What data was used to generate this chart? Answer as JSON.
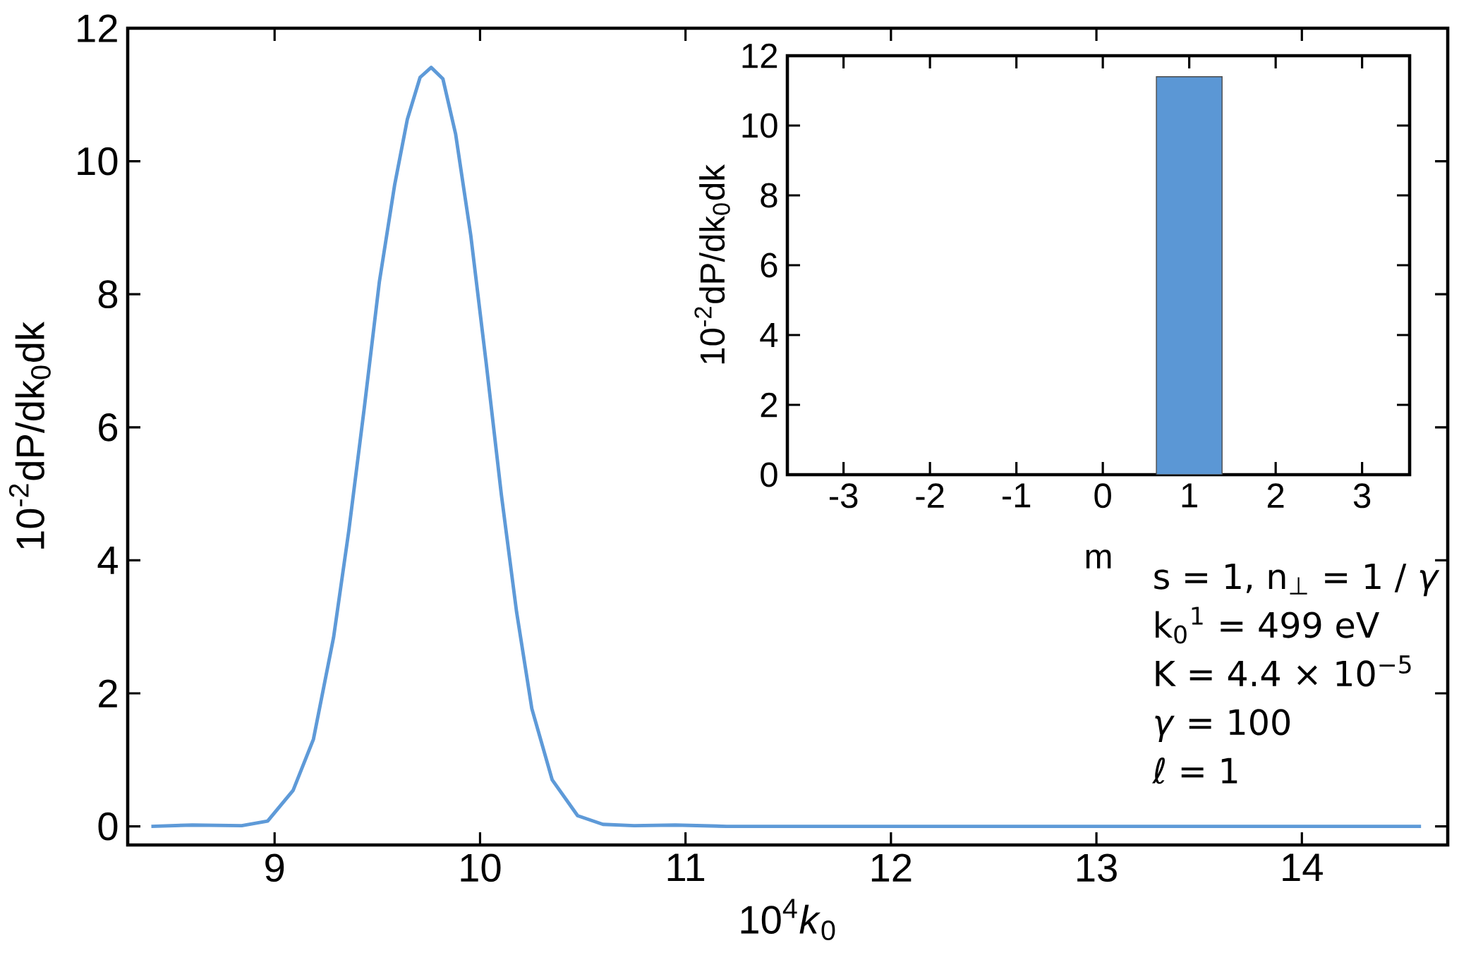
{
  "chart_data": [
    {
      "type": "line",
      "color": "#5e9ad8",
      "x": [
        8.4,
        8.6,
        8.84,
        8.966,
        9.09,
        9.189,
        9.287,
        9.361,
        9.436,
        9.51,
        9.584,
        9.646,
        9.708,
        9.762,
        9.819,
        9.881,
        9.955,
        10.03,
        10.104,
        10.178,
        10.252,
        10.351,
        10.475,
        10.598,
        10.75,
        10.95,
        11.2,
        12.0,
        13.0,
        14.0,
        14.58
      ],
      "values": [
        0.0,
        0.02,
        0.01,
        0.08,
        0.54,
        1.31,
        2.84,
        4.44,
        6.28,
        8.19,
        9.64,
        10.63,
        11.26,
        11.41,
        11.24,
        10.41,
        8.88,
        6.96,
        4.98,
        3.22,
        1.77,
        0.7,
        0.16,
        0.03,
        0.01,
        0.02,
        0.0,
        0.0,
        0.0,
        0.0,
        0.0
      ],
      "xlim": [
        8.285,
        14.71
      ],
      "ylim": [
        -0.28,
        12
      ],
      "xticks": [
        9,
        10,
        11,
        12,
        13,
        14
      ],
      "yticks": [
        0,
        2,
        4,
        6,
        8,
        10,
        12
      ],
      "xlabel": "10$^{4}$*k*$_{0}$",
      "ylabel": "10$^{-2}$dP/dk$_{0}$dk",
      "annotations": [
        "s = 1, n$_{⊥}$ = 1 / *γ*",
        "k$_{0}$$^{1}$ = 499 eV",
        "K = 4.4 × 10$^{−5}$",
        "*γ* = 100",
        "ℓ = 1"
      ]
    },
    {
      "type": "bar",
      "color": "#5b97d5",
      "x": [
        1
      ],
      "values": [
        11.4
      ],
      "xlim": [
        -3.65,
        3.55
      ],
      "ylim": [
        0,
        12
      ],
      "xticks": [
        -3,
        -2,
        -1,
        0,
        1,
        2,
        3
      ],
      "yticks": [
        0,
        2,
        4,
        6,
        8,
        10,
        12
      ],
      "xlabel": "m",
      "ylabel": "10$^{-2}$dP/dk$_{0}$dk"
    }
  ]
}
